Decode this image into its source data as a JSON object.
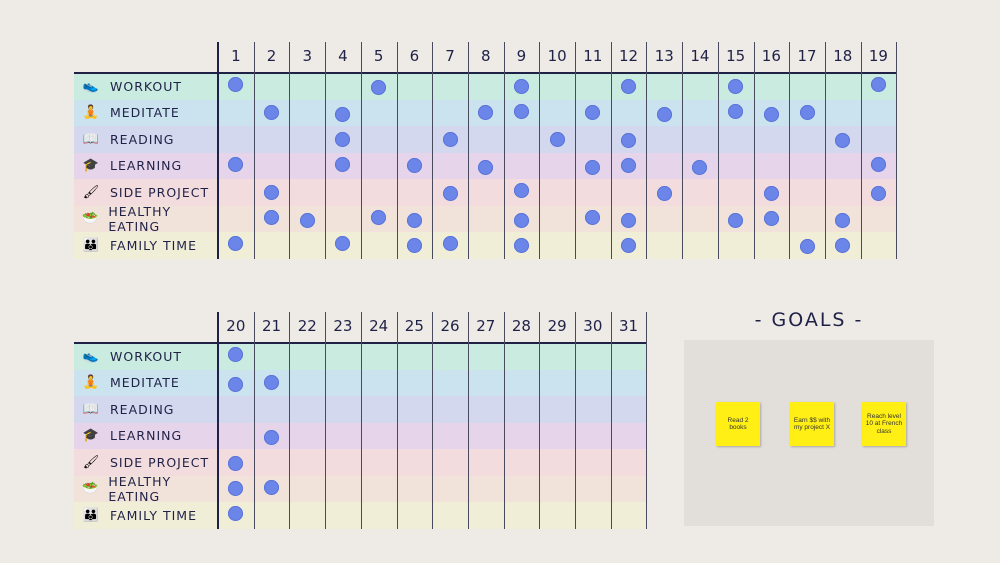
{
  "habits": [
    {
      "id": "workout",
      "label": "WORKOUT",
      "icon": "sneaker-icon",
      "glyph": "👟",
      "color": "#c9ebe0"
    },
    {
      "id": "meditate",
      "label": "MEDITATE",
      "icon": "meditation-icon",
      "glyph": "🧘",
      "color": "#cbe3ee"
    },
    {
      "id": "reading",
      "label": "READING",
      "icon": "book-icon",
      "glyph": "📖",
      "color": "#d4d8ee"
    },
    {
      "id": "learning",
      "label": "LEARNING",
      "icon": "graduation-cap-icon",
      "glyph": "🎓",
      "color": "#e6d5ea"
    },
    {
      "id": "side_project",
      "label": "SIDE PROJECT",
      "icon": "paintbrush-icon",
      "glyph": "🖌",
      "color": "#f2dcde"
    },
    {
      "id": "healthy_eating",
      "label": "HEALTHY EATING",
      "icon": "salad-icon",
      "glyph": "🥗",
      "color": "#f1e2da"
    },
    {
      "id": "family_time",
      "label": "FAMILY TIME",
      "icon": "family-icon",
      "glyph": "👪",
      "color": "#f1eed8"
    }
  ],
  "period1": {
    "days": [
      "1",
      "2",
      "3",
      "4",
      "5",
      "6",
      "7",
      "8",
      "9",
      "10",
      "11",
      "12",
      "13",
      "14",
      "15",
      "16",
      "17",
      "18",
      "19"
    ],
    "checks": {
      "workout": [
        1,
        5,
        9,
        12,
        15,
        19
      ],
      "meditate": [
        2,
        4,
        8,
        9,
        11,
        13,
        15,
        16,
        17
      ],
      "reading": [
        4,
        7,
        10,
        12,
        18
      ],
      "learning": [
        1,
        4,
        6,
        8,
        11,
        12,
        14,
        19
      ],
      "side_project": [
        2,
        7,
        9,
        13,
        16,
        19
      ],
      "healthy_eating": [
        2,
        3,
        5,
        6,
        9,
        11,
        12,
        15,
        16,
        18
      ],
      "family_time": [
        1,
        4,
        6,
        7,
        9,
        12,
        17,
        18
      ]
    }
  },
  "period2": {
    "days": [
      "20",
      "21",
      "22",
      "23",
      "24",
      "25",
      "26",
      "27",
      "28",
      "29",
      "30",
      "31"
    ],
    "checks": {
      "workout": [
        20
      ],
      "meditate": [
        20,
        21
      ],
      "reading": [],
      "learning": [
        21
      ],
      "side_project": [
        20
      ],
      "healthy_eating": [
        20,
        21
      ],
      "family_time": [
        20
      ]
    }
  },
  "goals": {
    "title": "- GOALS -",
    "notes": [
      "Read 2 books",
      "Earn $$ with my project X",
      "Reach level 10 at French class"
    ]
  }
}
